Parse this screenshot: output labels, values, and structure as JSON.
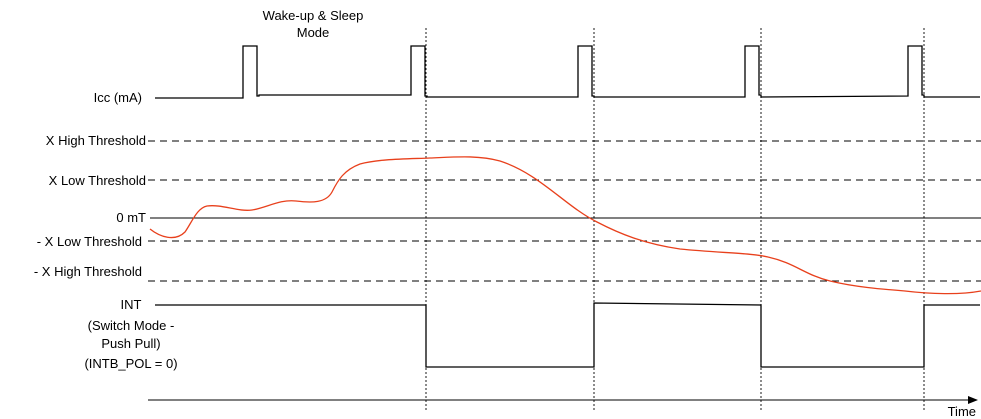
{
  "title": [
    "Wake-up & Sleep",
    "Mode"
  ],
  "signals": {
    "icc": "Icc (mA)",
    "int": [
      "INT",
      "(Switch Mode -",
      "Push Pull)",
      "(INTB_POL = 0)"
    ]
  },
  "thresholds": {
    "x_high": "X High Threshold",
    "x_low": "X Low Threshold",
    "zero": "0 mT",
    "neg_x_low": "- X Low Threshold",
    "neg_x_high": "- X High Threshold"
  },
  "axis": {
    "x_label": "Time"
  },
  "colors": {
    "field_curve": "#e8401c",
    "signal": "#000000"
  }
}
